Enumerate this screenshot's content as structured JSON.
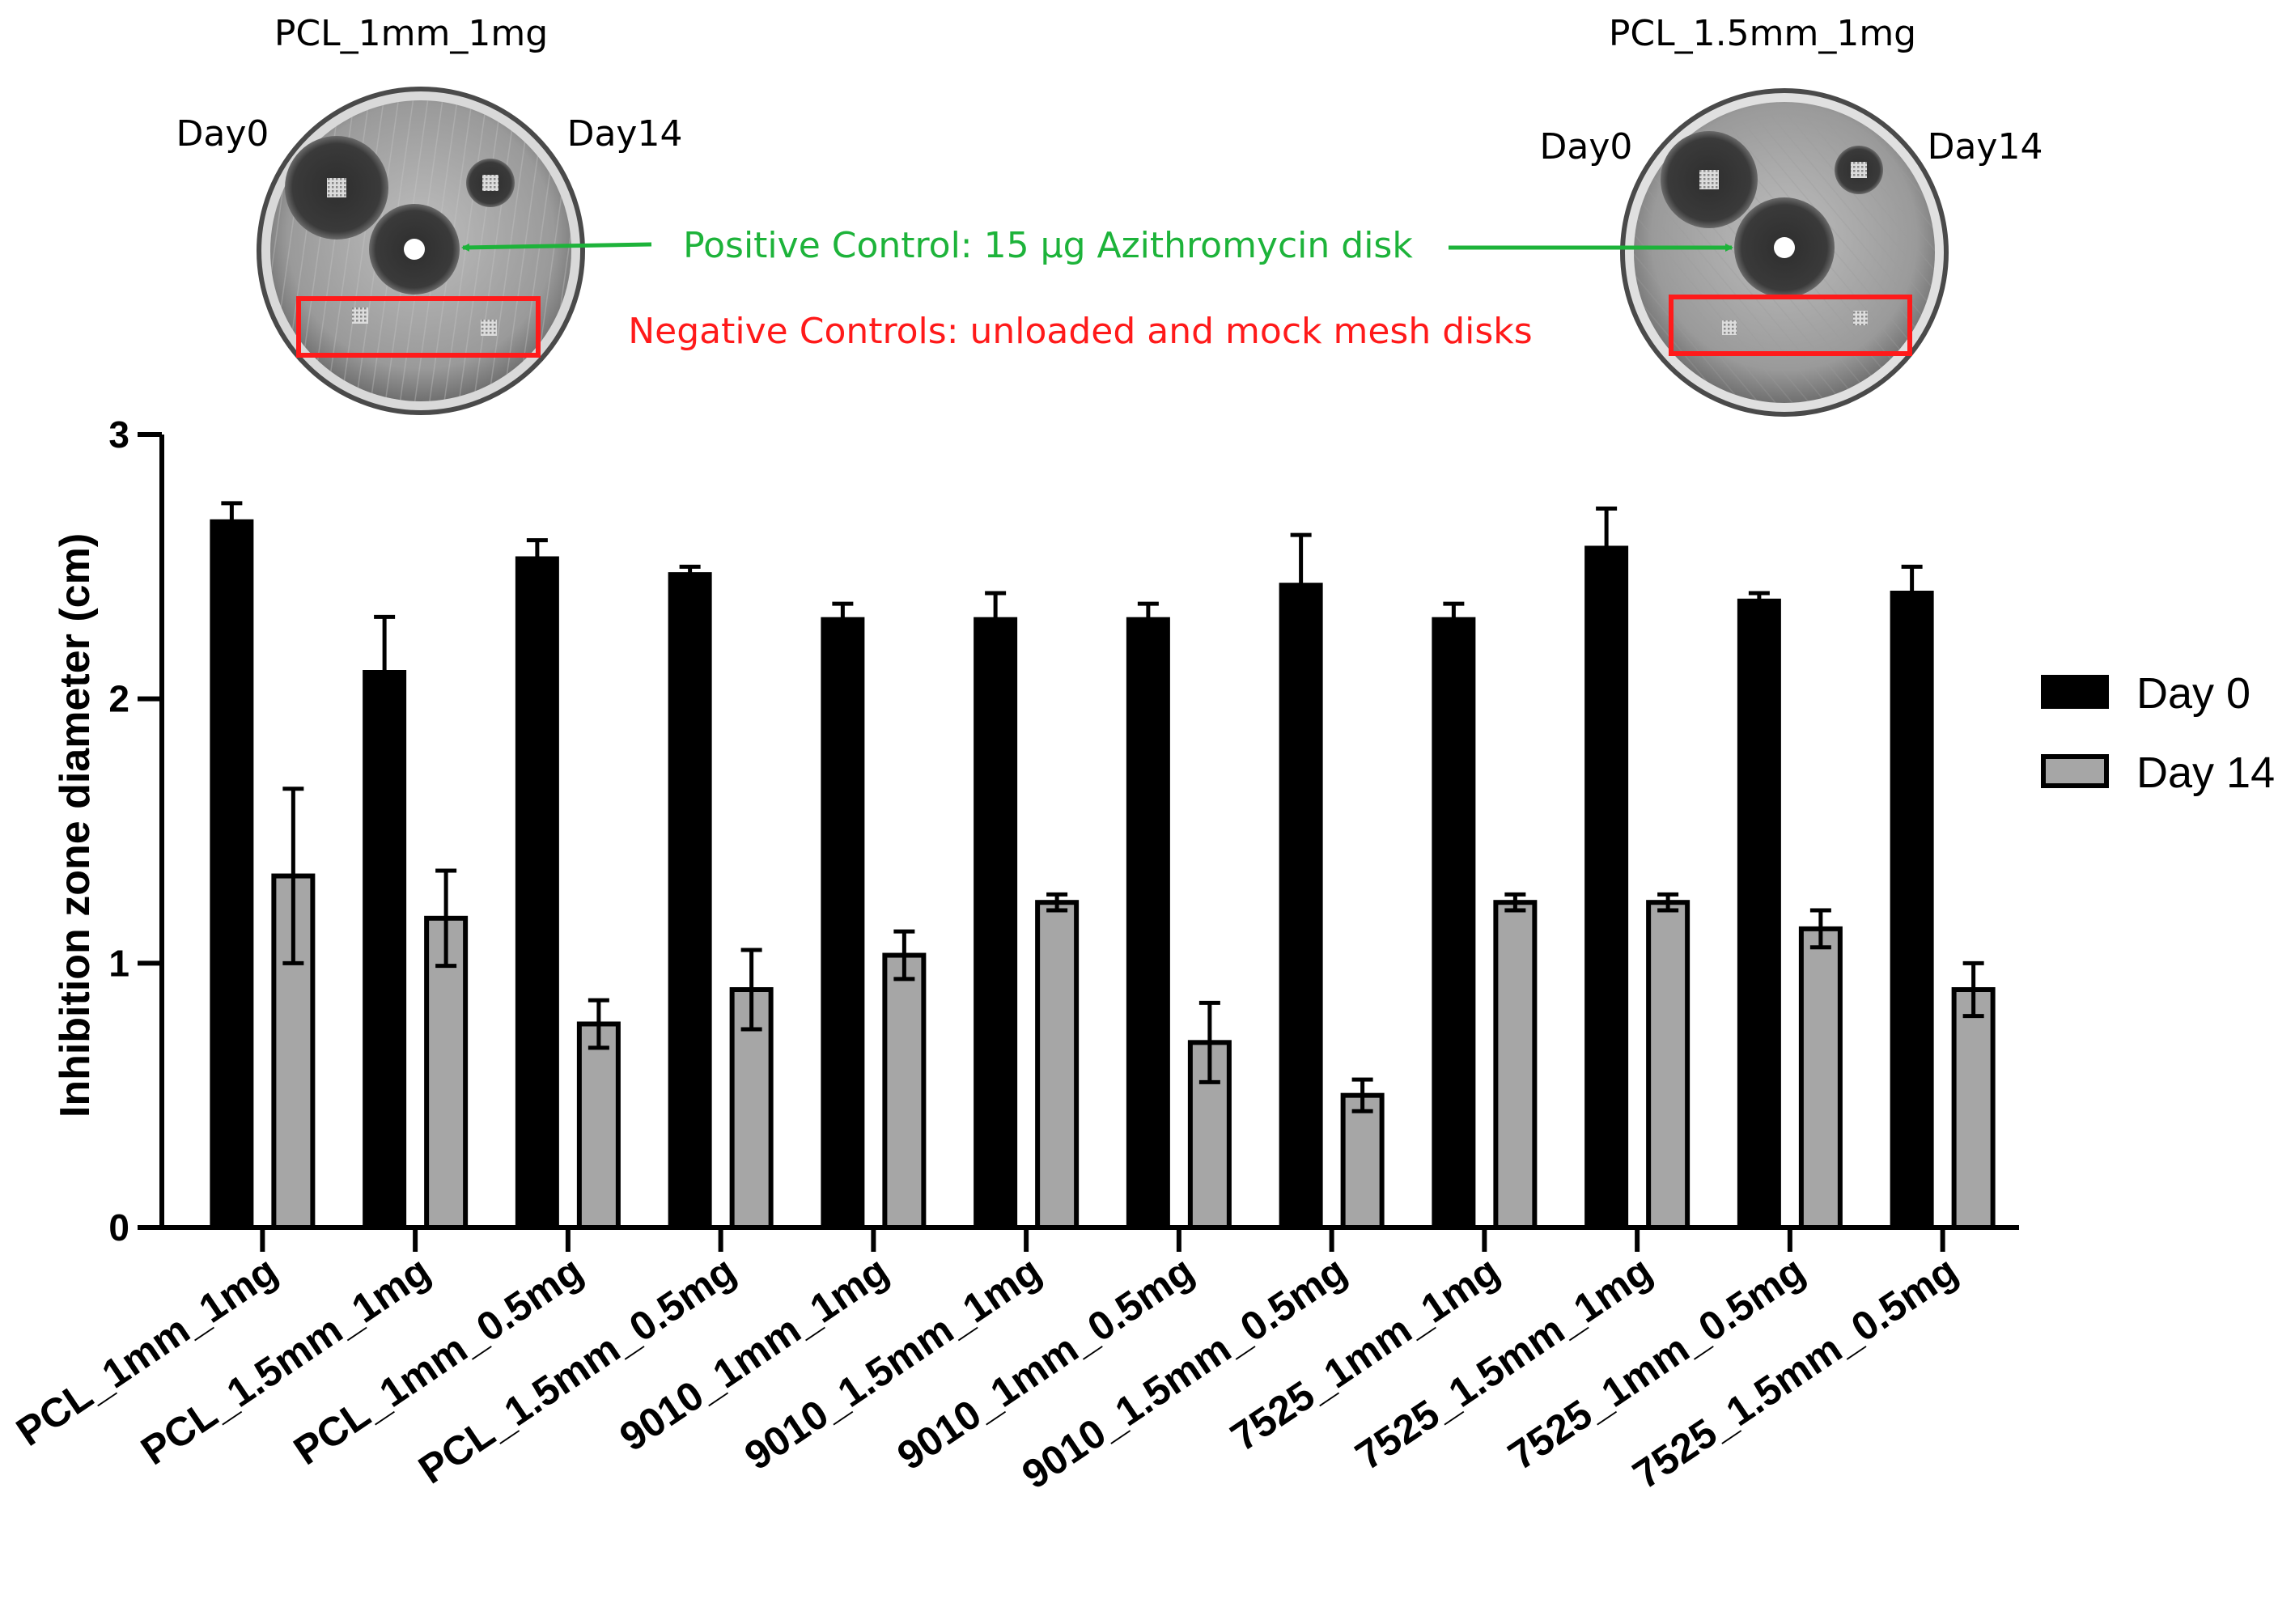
{
  "photos": [
    {
      "title": "PCL_1mm_1mg",
      "left_label": "Day0",
      "right_label": "Day14"
    },
    {
      "title": "PCL_1.5mm_1mg",
      "left_label": "Day0",
      "right_label": "Day14"
    }
  ],
  "annotations": {
    "positive_control": "Positive Control: 15 µg Azithromycin disk",
    "negative_controls": "Negative Controls: unloaded and mock mesh disks",
    "positive_color": "#1db33a",
    "negative_color": "#ff1a1a"
  },
  "chart_data": {
    "type": "bar",
    "title": "",
    "xlabel": "",
    "ylabel": "Inhibition zone diameter (cm)",
    "ylim": [
      0,
      3
    ],
    "yticks": [
      "0",
      "1",
      "2",
      "3"
    ],
    "grid": false,
    "legend_position": "right",
    "categories": [
      "PCL_1mm_1mg",
      "PCL_1.5mm_1mg",
      "PCL_1mm_0.5mg",
      "PCL_1.5mm_0.5mg",
      "9010_1mm_1mg",
      "9010_1.5mm_1mg",
      "9010_1mm_0.5mg",
      "9010_1.5mm_0.5mg",
      "7525_1mm_1mg",
      "7525_1.5mm_1mg",
      "7525_1mm_0.5mg",
      "7525_1.5mm_0.5mg"
    ],
    "series": [
      {
        "name": "Day 0",
        "color": "#000000",
        "values": [
          2.67,
          2.1,
          2.53,
          2.47,
          2.3,
          2.3,
          2.3,
          2.43,
          2.3,
          2.57,
          2.37,
          2.4
        ],
        "errors": [
          0.07,
          0.21,
          0.07,
          0.03,
          0.06,
          0.1,
          0.06,
          0.19,
          0.06,
          0.15,
          0.03,
          0.1
        ]
      },
      {
        "name": "Day 14",
        "color": "#a6a6a6",
        "values": [
          1.33,
          1.17,
          0.77,
          0.9,
          1.03,
          1.23,
          0.7,
          0.5,
          1.23,
          1.23,
          1.13,
          0.9
        ],
        "errors": [
          0.33,
          0.18,
          0.09,
          0.15,
          0.09,
          0.03,
          0.15,
          0.06,
          0.03,
          0.03,
          0.07,
          0.1
        ]
      }
    ]
  }
}
